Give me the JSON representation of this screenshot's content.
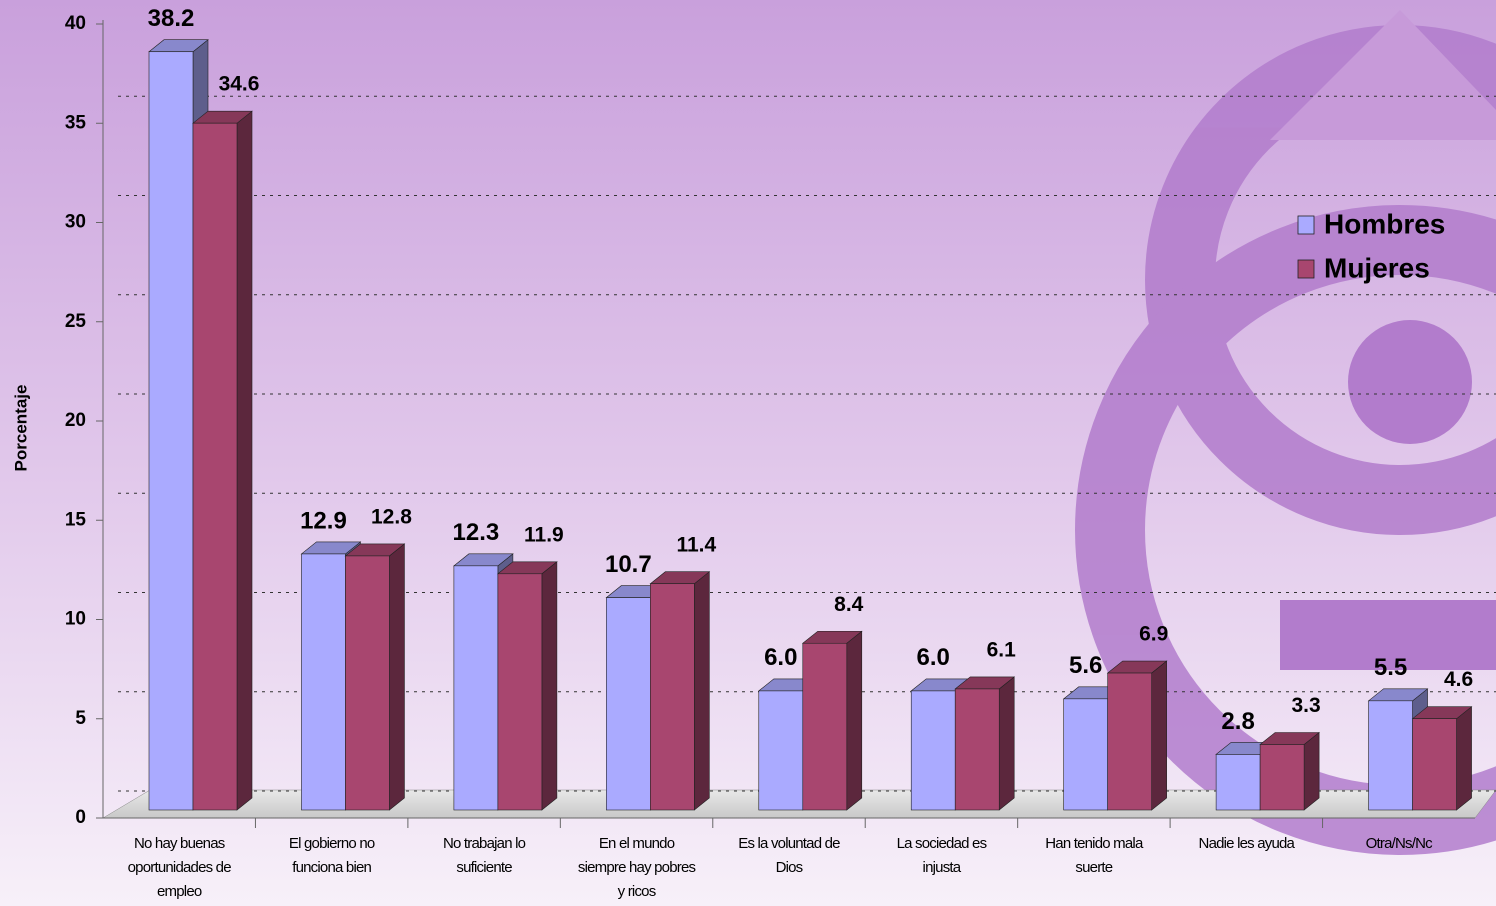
{
  "chart_data": {
    "type": "bar3d",
    "y_label": "Porcentaje",
    "categories": [
      "No hay buenas oportunidades de empleo",
      "El gobierno no funciona bien",
      "No trabajan lo suficiente",
      "En el mundo siempre hay pobres y ricos",
      "Es la voluntad de Dios",
      "La sociedad es injusta",
      "Han tenido mala suerte",
      "Nadie les ayuda",
      "Otra/Ns/Nc"
    ],
    "series": [
      {
        "name": "Hombres",
        "color": "#aaaaff",
        "values": [
          38.2,
          12.9,
          12.3,
          10.7,
          6.0,
          6.0,
          5.6,
          2.8,
          5.5
        ],
        "value_labels": [
          "38.2",
          "12.9",
          "12.3",
          "10.7",
          "6.0",
          "6.0",
          "5.6",
          "2.8",
          "5.5"
        ]
      },
      {
        "name": "Mujeres",
        "color": "#a8466f",
        "values": [
          34.6,
          12.8,
          11.9,
          11.4,
          8.4,
          6.1,
          6.9,
          3.3,
          4.6
        ],
        "value_labels": [
          "34.6",
          "12.8",
          "11.9",
          "11.4",
          "8.4",
          "6.1",
          "6.9",
          "3.3",
          "4.6"
        ]
      }
    ],
    "ylim": [
      0,
      40
    ],
    "yticks": [
      0,
      5,
      10,
      15,
      20,
      25,
      30,
      35,
      40
    ],
    "grid": true,
    "legend": "right"
  }
}
